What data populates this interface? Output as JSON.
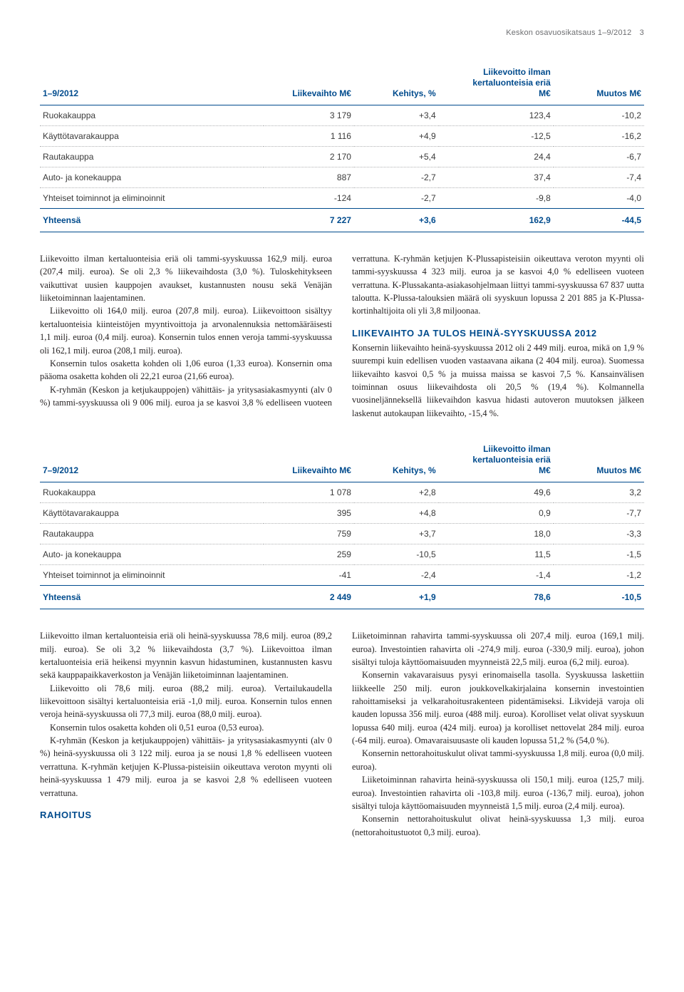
{
  "header": {
    "text": "Keskon osavuosikatsaus 1–9/2012",
    "page": "3"
  },
  "colors": {
    "brand_blue": "#004b8d",
    "body_text": "#231f20",
    "muted": "#6d6e71",
    "dotted_rule": "#b0b1b3"
  },
  "table1": {
    "period_label": "1–9/2012",
    "columns": [
      "Liikevaihto M€",
      "Kehitys, %",
      "Liikevoitto ilman\nkertaluonteisia eriä\nM€",
      "Muutos M€"
    ],
    "rows": [
      {
        "label": "Ruokakauppa",
        "c1": "3 179",
        "c2": "+3,4",
        "c3": "123,4",
        "c4": "-10,2"
      },
      {
        "label": "Käyttötavarakauppa",
        "c1": "1 116",
        "c2": "+4,9",
        "c3": "-12,5",
        "c4": "-16,2"
      },
      {
        "label": "Rautakauppa",
        "c1": "2 170",
        "c2": "+5,4",
        "c3": "24,4",
        "c4": "-6,7"
      },
      {
        "label": "Auto- ja konekauppa",
        "c1": "887",
        "c2": "-2,7",
        "c3": "37,4",
        "c4": "-7,4"
      },
      {
        "label": "Yhteiset toiminnot ja eliminoinnit",
        "c1": "-124",
        "c2": "-2,7",
        "c3": "-9,8",
        "c4": "-4,0"
      }
    ],
    "total": {
      "label": "Yhteensä",
      "c1": "7 227",
      "c2": "+3,6",
      "c3": "162,9",
      "c4": "-44,5"
    }
  },
  "body1_paragraphs": [
    {
      "indent": false,
      "text": "Liikevoitto ilman kertaluonteisia eriä oli tammi-syyskuussa 162,9 milj. euroa (207,4 milj. euroa). Se oli 2,3 % liikevaihdosta (3,0 %). Tuloskehitykseen vaikuttivat uusien kauppojen avaukset, kustannusten nousu sekä Venäjän liiketoiminnan laajentaminen."
    },
    {
      "indent": true,
      "text": "Liikevoitto oli 164,0 milj. euroa (207,8 milj. euroa). Liikevoittoon sisältyy kertaluonteisia kiinteistöjen myyntivoittoja ja arvonalennuksia nettomääräisesti 1,1 milj. euroa (0,4 milj. euroa). Konsernin tulos ennen veroja tammi-syyskuussa oli 162,1 milj. euroa (208,1 milj. euroa)."
    },
    {
      "indent": true,
      "text": "Konsernin tulos osaketta kohden oli 1,06 euroa (1,33 euroa). Konsernin oma pääoma osaketta kohden oli 22,21 euroa (21,66 euroa)."
    },
    {
      "indent": true,
      "text": "K-ryhmän (Keskon ja ketjukauppojen) vähittäis- ja yritysasiakasmyynti (alv 0 %) tammi-syyskuussa oli 9 006 milj. euroa ja se kasvoi 3,8 % edelliseen vuoteen verrattuna. K-ryhmän ketjujen K-Plussa­pisteisiin oikeuttava veroton myynti oli tammi-syyskuussa 4 323 milj. euroa ja se kasvoi 4,0 % edelliseen vuoteen verrattuna. K-Plussa­kanta-asiakasohjelmaan liittyi tammi-syyskuussa 67 837 uutta taloutta. K-Plussa-talouksien määrä oli syyskuun lopussa 2 201 885 ja K-Plussa-kortinhaltijoita oli yli 3,8 miljoonaa."
    }
  ],
  "section_heading_1": "LIIKEVAIHTO JA TULOS HEINÄ-SYYSKUUSSA 2012",
  "body1_after_heading": [
    {
      "indent": false,
      "text": "Konsernin liikevaihto heinä-syyskuussa 2012 oli 2 449 milj. euroa, mikä on 1,9 % suurempi kuin edellisen vuoden vastaavana aikana (2 404 milj. euroa). Suomessa liikevaihto kasvoi 0,5 % ja muissa maissa se kasvoi 7,5 %. Kansainvälisen toiminnan osuus liikevaihdosta oli 20,5 % (19,4 %). Kolmannella vuosineljänneksellä liikevaihdon kasvua hidasti autoveron muutoksen jälkeen laskenut autokaupan liikevaihto, -15,4 %."
    }
  ],
  "table2": {
    "period_label": "7–9/2012",
    "columns": [
      "Liikevaihto M€",
      "Kehitys, %",
      "Liikevoitto ilman\nkertaluonteisia eriä\nM€",
      "Muutos M€"
    ],
    "rows": [
      {
        "label": "Ruokakauppa",
        "c1": "1 078",
        "c2": "+2,8",
        "c3": "49,6",
        "c4": "3,2"
      },
      {
        "label": "Käyttötavarakauppa",
        "c1": "395",
        "c2": "+4,8",
        "c3": "0,9",
        "c4": "-7,7"
      },
      {
        "label": "Rautakauppa",
        "c1": "759",
        "c2": "+3,7",
        "c3": "18,0",
        "c4": "-3,3"
      },
      {
        "label": "Auto- ja konekauppa",
        "c1": "259",
        "c2": "-10,5",
        "c3": "11,5",
        "c4": "-1,5"
      },
      {
        "label": "Yhteiset toiminnot ja eliminoinnit",
        "c1": "-41",
        "c2": "-2,4",
        "c3": "-1,4",
        "c4": "-1,2"
      }
    ],
    "total": {
      "label": "Yhteensä",
      "c1": "2 449",
      "c2": "+1,9",
      "c3": "78,6",
      "c4": "-10,5"
    }
  },
  "body2_paragraphs": [
    {
      "indent": false,
      "text": "Liikevoitto ilman kertaluonteisia eriä oli heinä-syyskuussa 78,6 milj. euroa (89,2 milj. euroa). Se oli 3,2 % liikevaihdosta (3,7 %). Liikevoittoa ilman kertaluonteisia eriä heikensi myynnin kasvun hidastuminen, kustannusten kasvu sekä kauppapaikkaverkoston ja Venäjän liiketoiminnan laajentaminen."
    },
    {
      "indent": true,
      "text": "Liikevoitto oli 78,6 milj. euroa (88,2 milj. euroa). Vertailukaudella liikevoittoon sisältyi kertaluonteisia eriä -1,0 milj. euroa. Konsernin tulos ennen veroja heinä-syyskuussa oli 77,3 milj. euroa (88,0 milj. euroa)."
    },
    {
      "indent": true,
      "text": "Konsernin tulos osaketta kohden oli 0,51 euroa (0,53 euroa)."
    },
    {
      "indent": true,
      "text": "K-ryhmän (Keskon ja ketjukauppojen) vähittäis- ja yritysasiakasmyynti (alv 0 %) heinä-syyskuussa oli 3 122 milj. euroa ja se nousi 1,8 % edelliseen vuoteen verrattuna. K-ryhmän ketjujen K-Plussa-pisteisiin oikeuttava veroton myynti oli heinä-syyskuussa 1 479 milj. euroa ja se kasvoi 2,8 % edelliseen vuoteen verrattuna."
    }
  ],
  "section_heading_2": "RAHOITUS",
  "body2_after_heading": [
    {
      "indent": false,
      "text": "Liiketoiminnan rahavirta tammi-syyskuussa oli 207,4 milj. euroa (169,1 milj. euroa). Investointien rahavirta oli -274,9 milj. euroa (-330,9 milj. euroa), johon sisältyi tuloja käyttöomaisuuden myynneistä 22,5 milj. euroa (6,2 milj. euroa)."
    },
    {
      "indent": true,
      "text": "Konsernin vakavaraisuus pysyi erinomaisella tasolla. Syyskuussa laskettiin liikkeelle 250 milj. euron joukkovelkakirjalaina konsernin investointien rahoittamiseksi ja velkarahoitusrakenteen pidentämiseksi. Likvidejä varoja oli kauden lopussa 356 milj. euroa (488 milj. euroa). Korolliset velat olivat syyskuun lopussa 640 milj. euroa (424 milj. euroa) ja korolliset nettovelat 284 milj. euroa (-64 milj. euroa). Omavaraisuusaste oli kauden lopussa 51,2 % (54,0 %)."
    },
    {
      "indent": true,
      "text": "Konsernin nettorahoituskulut olivat tammi-syyskuussa 1,8 milj. euroa (0,0 milj. euroa)."
    },
    {
      "indent": true,
      "text": "Liiketoiminnan rahavirta heinä-syyskuussa oli 150,1 milj. euroa (125,7 milj. euroa). Investointien rahavirta oli -103,8 milj. euroa (-136,7 milj. euroa), johon sisältyi tuloja käyttöomaisuuden myynneistä 1,5 milj. euroa (2,4 milj. euroa)."
    },
    {
      "indent": true,
      "text": "Konsernin nettorahoituskulut olivat heinä-syyskuussa 1,3 milj. euroa (nettorahoitustuotot 0,3 milj. euroa)."
    }
  ]
}
